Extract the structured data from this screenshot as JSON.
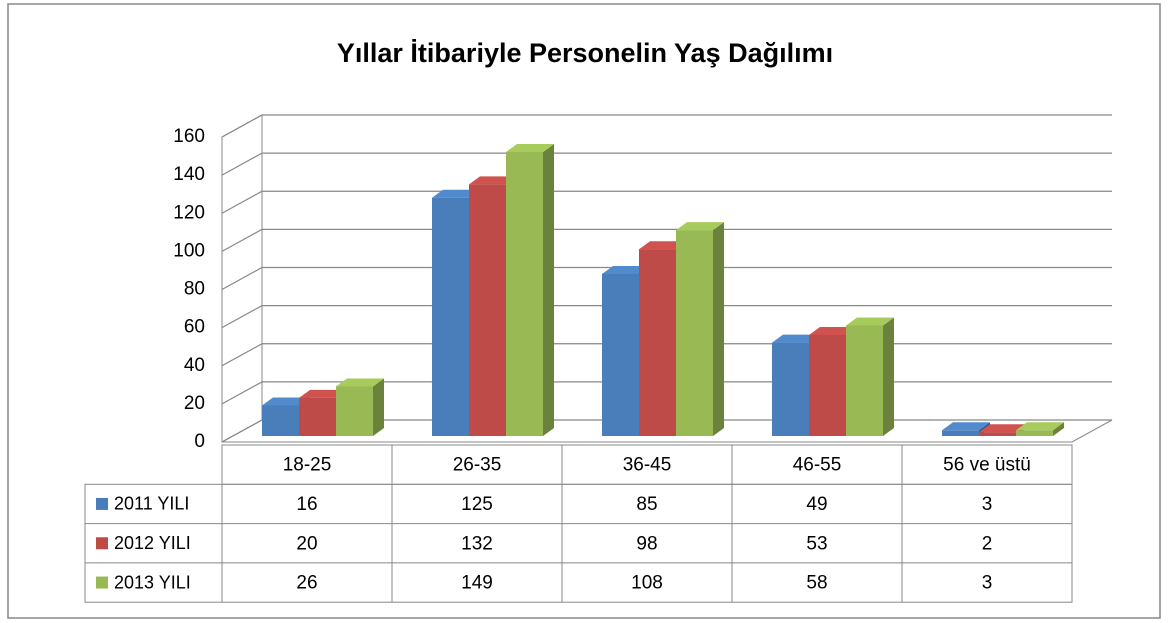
{
  "chart_data": {
    "type": "bar",
    "title": "Yıllar İtibariyle Personelin Yaş Dağılımı",
    "categories": [
      "18-25",
      "26-35",
      "36-45",
      "46-55",
      "56 ve üstü"
    ],
    "series": [
      {
        "name": "2011 YILI",
        "color": "#4a7ebb",
        "values": [
          16,
          125,
          85,
          49,
          3
        ]
      },
      {
        "name": "2012 YILI",
        "color": "#be4b48",
        "values": [
          20,
          132,
          98,
          53,
          2
        ]
      },
      {
        "name": "2013 YILI",
        "color": "#98b954",
        "values": [
          26,
          149,
          108,
          58,
          3
        ]
      }
    ],
    "ylim": [
      0,
      160
    ],
    "yticks": [
      0,
      20,
      40,
      60,
      80,
      100,
      120,
      140,
      160
    ],
    "grid": true
  }
}
